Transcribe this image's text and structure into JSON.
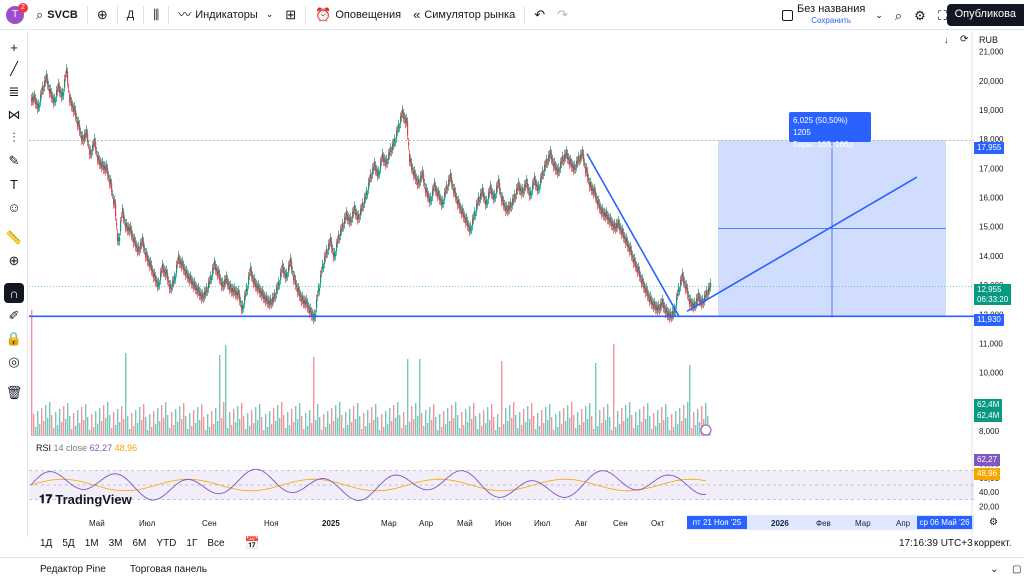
{
  "toolbar": {
    "avatar_letter": "T",
    "notifications": "2",
    "symbol": "SVCB",
    "interval": "Д",
    "indicators": "Индикаторы",
    "alerts": "Оповещения",
    "replay": "Симулятор рынка",
    "layout_name": "Без названия",
    "layout_saved": "Сохранить",
    "publish": "Опубликова"
  },
  "chart_header": {
    "currency": "RUB"
  },
  "price_scale": [
    "21,000",
    "20,000",
    "19,000",
    "18,000",
    "17,000",
    "16,000",
    "15,000",
    "14,000",
    "13,000",
    "12,000",
    "11,000",
    "10,000",
    "9,000",
    "8,000"
  ],
  "price_tags": {
    "target": "17,955",
    "last": "12,955",
    "countdown": "06:33:20",
    "support": "11,930",
    "vol1": "62,4M",
    "vol2": "62,4M"
  },
  "measure": {
    "line1": "6,025 (50,50%) 1205",
    "line2": "Бары: 163, 166д"
  },
  "rsi": {
    "title": "RSI",
    "params": "14 close",
    "value": "62,27",
    "ma_value": "48,96",
    "scale": [
      "80,00",
      "60,00",
      "40,00",
      "20,00"
    ]
  },
  "time_axis": [
    "Май",
    "Июл",
    "Сен",
    "Ноя",
    "2025",
    "Мар",
    "Апр",
    "Май",
    "Июн",
    "Июл",
    "Авг",
    "Сен",
    "Окт",
    "Н",
    "2026",
    "Фев",
    "Мар",
    "Апр"
  ],
  "time_tags": {
    "cursor_date": "пт 21 Ноя '25",
    "end_date": "ср 06 Май '26"
  },
  "logo_text": "TradingView",
  "timeframes": [
    "1Д",
    "5Д",
    "1М",
    "3М",
    "6М",
    "YTD",
    "1Г",
    "Все"
  ],
  "clock": "17:16:39 UTC+3",
  "adjust": "коррект.",
  "footer": {
    "pine": "Редактор Pine",
    "panel": "Торговая панель"
  },
  "colors": {
    "up": "#089981",
    "down": "#f23645",
    "accent": "#2962ff",
    "rsi": "#7e57c2",
    "rsi_ma": "#f7a600"
  },
  "chart_data": {
    "type": "candlestick",
    "symbol": "SVCB",
    "y_range": [
      8000,
      21500
    ],
    "support_level": 11930,
    "target_level": 17955,
    "last_price": 12955,
    "close_path": [
      [
        0,
        19400
      ],
      [
        4,
        19100
      ],
      [
        8,
        19700
      ],
      [
        12,
        20100
      ],
      [
        16,
        19600
      ],
      [
        20,
        19300
      ],
      [
        24,
        19800
      ],
      [
        28,
        19500
      ],
      [
        32,
        20300
      ],
      [
        36,
        19300
      ],
      [
        40,
        19000
      ],
      [
        44,
        18500
      ],
      [
        48,
        18000
      ],
      [
        52,
        18200
      ],
      [
        56,
        17500
      ],
      [
        60,
        17900
      ],
      [
        64,
        17300
      ],
      [
        68,
        17100
      ],
      [
        72,
        17000
      ],
      [
        76,
        16500
      ],
      [
        80,
        15800
      ],
      [
        84,
        14500
      ],
      [
        88,
        15500
      ],
      [
        92,
        15000
      ],
      [
        96,
        14900
      ],
      [
        100,
        14500
      ],
      [
        104,
        14200
      ],
      [
        108,
        14500
      ],
      [
        112,
        14000
      ],
      [
        116,
        13700
      ],
      [
        120,
        13300
      ],
      [
        124,
        13000
      ],
      [
        128,
        13600
      ],
      [
        132,
        13400
      ],
      [
        136,
        12900
      ],
      [
        140,
        13200
      ],
      [
        144,
        13900
      ],
      [
        148,
        13700
      ],
      [
        152,
        13400
      ],
      [
        156,
        13200
      ],
      [
        160,
        13000
      ],
      [
        164,
        12800
      ],
      [
        168,
        12600
      ],
      [
        172,
        12800
      ],
      [
        176,
        13200
      ],
      [
        180,
        13700
      ],
      [
        184,
        13400
      ],
      [
        188,
        13000
      ],
      [
        192,
        13200
      ],
      [
        196,
        12900
      ],
      [
        200,
        12800
      ],
      [
        204,
        12700
      ],
      [
        208,
        12200
      ],
      [
        212,
        12800
      ],
      [
        216,
        13500
      ],
      [
        220,
        13100
      ],
      [
        224,
        12900
      ],
      [
        228,
        12700
      ],
      [
        232,
        12500
      ],
      [
        236,
        12400
      ],
      [
        240,
        12600
      ],
      [
        244,
        13000
      ],
      [
        248,
        13600
      ],
      [
        252,
        13300
      ],
      [
        256,
        13800
      ],
      [
        260,
        13200
      ],
      [
        264,
        12800
      ],
      [
        268,
        12500
      ],
      [
        272,
        12400
      ],
      [
        276,
        12100
      ],
      [
        280,
        11900
      ],
      [
        284,
        12800
      ],
      [
        288,
        13600
      ],
      [
        292,
        14100
      ],
      [
        296,
        14500
      ],
      [
        300,
        14000
      ],
      [
        304,
        14600
      ],
      [
        308,
        15000
      ],
      [
        312,
        15400
      ],
      [
        316,
        15200
      ],
      [
        320,
        15600
      ],
      [
        324,
        15300
      ],
      [
        328,
        15700
      ],
      [
        332,
        16100
      ],
      [
        336,
        16700
      ],
      [
        340,
        17100
      ],
      [
        344,
        16800
      ],
      [
        348,
        17400
      ],
      [
        352,
        17200
      ],
      [
        356,
        17600
      ],
      [
        360,
        17900
      ],
      [
        364,
        18400
      ],
      [
        368,
        18900
      ],
      [
        372,
        18600
      ],
      [
        376,
        17200
      ],
      [
        380,
        16800
      ],
      [
        384,
        16500
      ],
      [
        388,
        16800
      ],
      [
        392,
        16200
      ],
      [
        396,
        15900
      ],
      [
        400,
        16400
      ],
      [
        404,
        16100
      ],
      [
        408,
        15800
      ],
      [
        412,
        16300
      ],
      [
        416,
        16700
      ],
      [
        420,
        16200
      ],
      [
        424,
        15800
      ],
      [
        428,
        15500
      ],
      [
        432,
        15200
      ],
      [
        436,
        14900
      ],
      [
        440,
        15400
      ],
      [
        444,
        15900
      ],
      [
        448,
        16200
      ],
      [
        452,
        15800
      ],
      [
        456,
        16300
      ],
      [
        460,
        16000
      ],
      [
        464,
        16500
      ],
      [
        468,
        15900
      ],
      [
        472,
        15600
      ],
      [
        476,
        15700
      ],
      [
        480,
        16000
      ],
      [
        484,
        16400
      ],
      [
        488,
        16200
      ],
      [
        492,
        16500
      ],
      [
        496,
        16100
      ],
      [
        500,
        16600
      ],
      [
        504,
        16300
      ],
      [
        508,
        16800
      ],
      [
        512,
        17200
      ],
      [
        516,
        17500
      ],
      [
        520,
        17100
      ],
      [
        524,
        16900
      ],
      [
        528,
        17300
      ],
      [
        532,
        17500
      ],
      [
        536,
        17200
      ],
      [
        540,
        17000
      ],
      [
        544,
        17300
      ],
      [
        548,
        17500
      ],
      [
        552,
        16900
      ],
      [
        556,
        16400
      ],
      [
        560,
        16200
      ],
      [
        564,
        15800
      ],
      [
        568,
        15500
      ],
      [
        572,
        15400
      ],
      [
        576,
        15200
      ],
      [
        580,
        15000
      ],
      [
        584,
        15100
      ],
      [
        588,
        14800
      ],
      [
        592,
        14500
      ],
      [
        596,
        14200
      ],
      [
        600,
        13800
      ],
      [
        604,
        13500
      ],
      [
        608,
        13100
      ],
      [
        612,
        12800
      ],
      [
        616,
        12500
      ],
      [
        620,
        12300
      ],
      [
        624,
        12200
      ],
      [
        628,
        12400
      ],
      [
        632,
        12100
      ],
      [
        636,
        11950
      ],
      [
        640,
        12100
      ],
      [
        644,
        12800
      ],
      [
        648,
        13300
      ],
      [
        652,
        12900
      ],
      [
        656,
        12400
      ],
      [
        660,
        12300
      ],
      [
        664,
        12600
      ],
      [
        668,
        12400
      ],
      [
        672,
        12700
      ],
      [
        676,
        12955
      ]
    ],
    "drawings": [
      {
        "kind": "horizontal_line",
        "price": 11930
      },
      {
        "kind": "trendline",
        "from": [
          556,
          17500
        ],
        "to": [
          648,
          11930
        ]
      },
      {
        "kind": "projection",
        "from": [
          656,
          12100
        ],
        "to": [
          886,
          16700
        ]
      },
      {
        "kind": "price_range",
        "from_price": 11930,
        "to_price": 17955,
        "label": "6,025 (50,50%) 1205"
      }
    ],
    "rsi_range": [
      0,
      100
    ],
    "rsi_overbought": 70,
    "rsi_oversold": 30,
    "rsi_last": 62.27,
    "rsi_ma_last": 48.96
  }
}
